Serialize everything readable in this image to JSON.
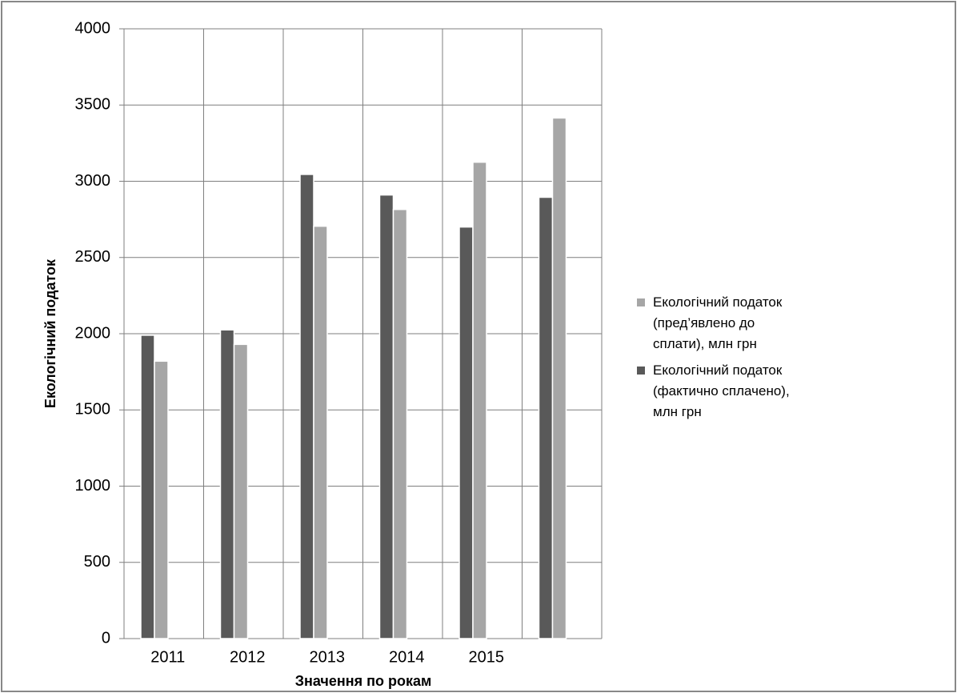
{
  "chart_data": {
    "type": "bar",
    "categories": [
      "2011",
      "2012",
      "2013",
      "2014",
      "2015",
      null
    ],
    "series": [
      {
        "name": "Екологічний податок (фактично сплачено), млн грн",
        "color": "#595959",
        "values": [
          1990,
          2025,
          3045,
          2910,
          2700,
          2895
        ]
      },
      {
        "name": "Екологічний податок (пред’явлено до сплати), млн грн",
        "color": "#a6a6a6",
        "values": [
          1820,
          1930,
          2705,
          2815,
          3125,
          3415
        ]
      }
    ],
    "ylim": [
      0,
      4000
    ],
    "yticks": [
      0,
      500,
      1000,
      1500,
      2000,
      2500,
      3000,
      3500,
      4000
    ],
    "y_label": "Екологічний податок",
    "x_label": "Значення по рокам",
    "grid": true,
    "legend": "right"
  }
}
